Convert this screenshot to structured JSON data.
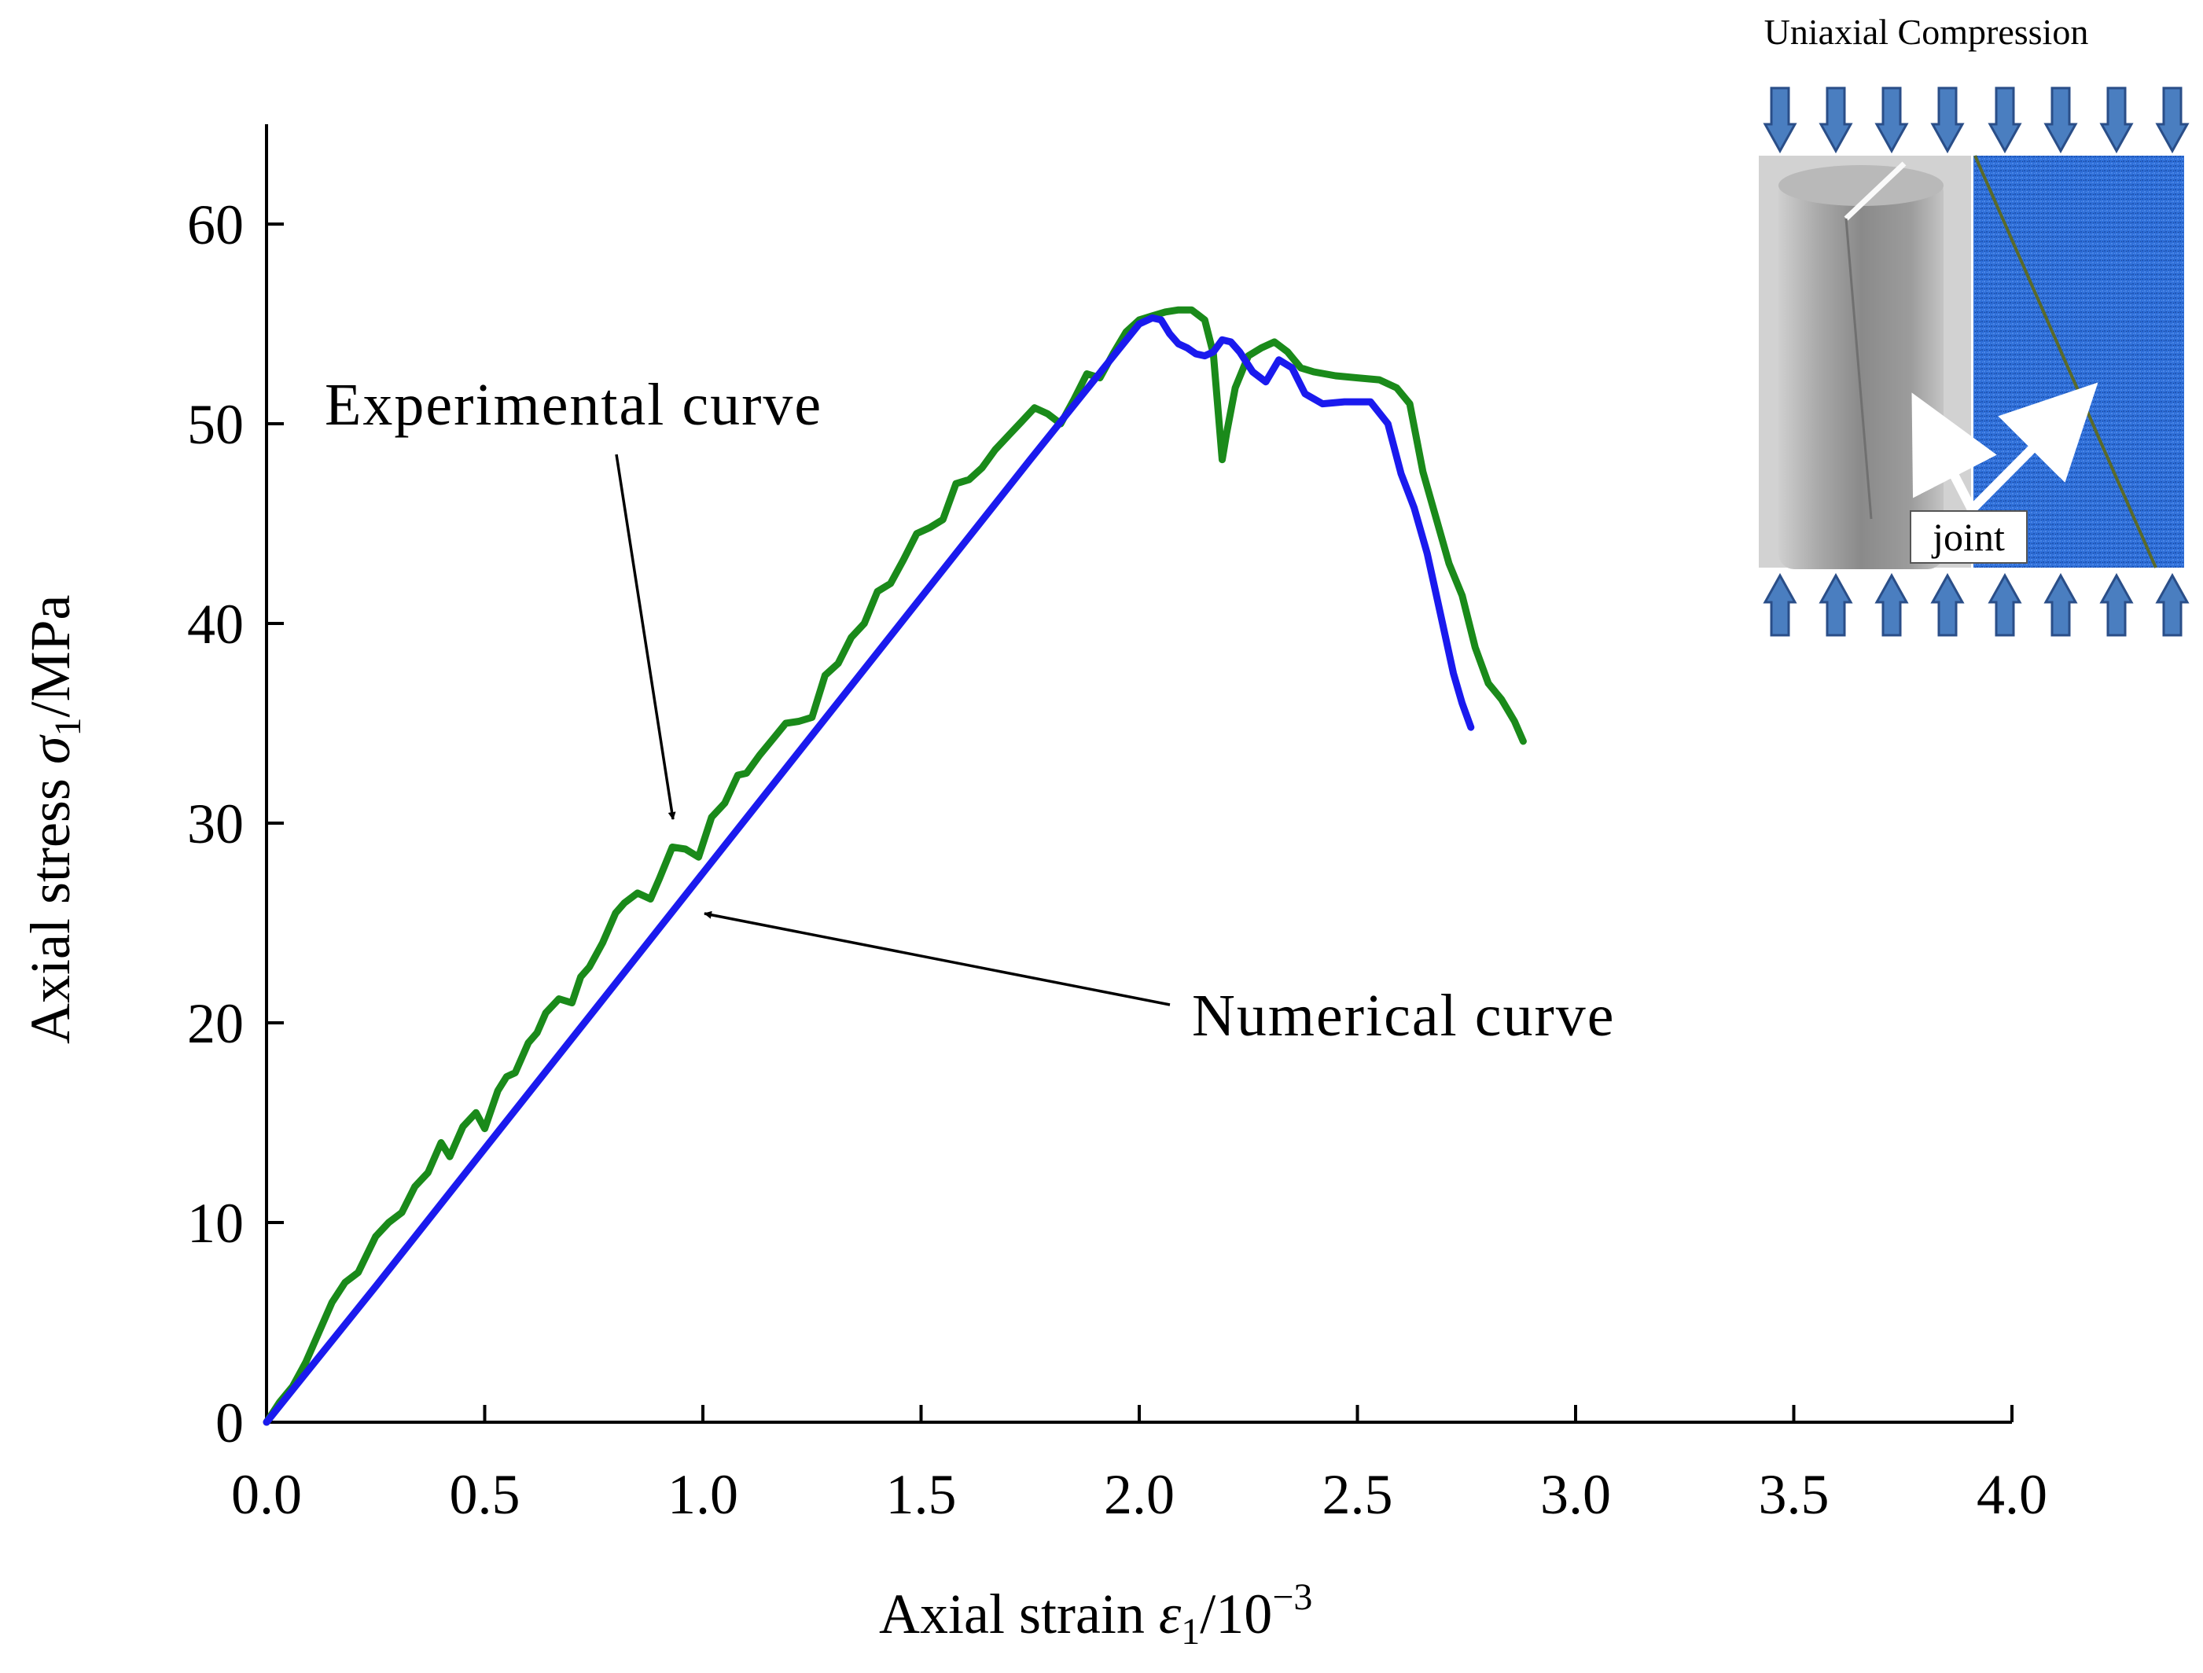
{
  "chart_data": {
    "type": "line",
    "xlabel": "Axial strain ε1/10−3",
    "ylabel": "Axial stress σ1/MPa",
    "xlim": [
      0,
      4.0
    ],
    "ylim": [
      0,
      65
    ],
    "x_ticks": [
      "0.0",
      "0.5",
      "1.0",
      "1.5",
      "2.0",
      "2.5",
      "3.0",
      "3.5",
      "4.0"
    ],
    "y_ticks": [
      "0",
      "10",
      "20",
      "30",
      "40",
      "50",
      "60"
    ],
    "grid": false,
    "series": [
      {
        "name": "Experimental curve",
        "color": "#1a8a1a",
        "x": [
          0.0,
          0.03,
          0.06,
          0.09,
          0.12,
          0.15,
          0.18,
          0.21,
          0.25,
          0.28,
          0.31,
          0.34,
          0.37,
          0.4,
          0.42,
          0.45,
          0.48,
          0.5,
          0.53,
          0.55,
          0.57,
          0.6,
          0.62,
          0.64,
          0.67,
          0.7,
          0.72,
          0.74,
          0.77,
          0.8,
          0.82,
          0.85,
          0.88,
          0.9,
          0.93,
          0.96,
          0.99,
          1.02,
          1.05,
          1.08,
          1.1,
          1.13,
          1.16,
          1.19,
          1.22,
          1.25,
          1.28,
          1.31,
          1.34,
          1.37,
          1.4,
          1.43,
          1.46,
          1.49,
          1.52,
          1.55,
          1.58,
          1.61,
          1.64,
          1.67,
          1.7,
          1.73,
          1.76,
          1.79,
          1.82,
          1.85,
          1.88,
          1.91,
          1.94,
          1.97,
          2.0,
          2.03,
          2.06,
          2.09,
          2.12,
          2.15,
          2.17,
          2.19,
          2.2,
          2.22,
          2.25,
          2.28,
          2.31,
          2.34,
          2.37,
          2.4,
          2.45,
          2.5,
          2.55,
          2.59,
          2.62,
          2.65,
          2.68,
          2.71,
          2.74,
          2.77,
          2.8,
          2.83,
          2.86,
          2.88
        ],
        "y": [
          0.0,
          1.0,
          1.8,
          3.0,
          4.5,
          6.0,
          7.0,
          7.5,
          9.3,
          10.0,
          10.5,
          11.8,
          12.5,
          14.0,
          13.3,
          14.8,
          15.5,
          14.7,
          16.6,
          17.3,
          17.5,
          19.0,
          19.5,
          20.5,
          21.2,
          21.0,
          22.3,
          22.8,
          24.0,
          25.5,
          26.0,
          26.5,
          26.2,
          27.2,
          28.8,
          28.7,
          28.3,
          30.3,
          31.0,
          32.4,
          32.5,
          33.4,
          34.2,
          35.0,
          35.1,
          35.3,
          37.4,
          38.0,
          39.3,
          40.0,
          41.6,
          42.0,
          43.2,
          44.5,
          44.8,
          45.2,
          47.0,
          47.2,
          47.8,
          48.7,
          49.4,
          50.1,
          50.8,
          50.5,
          50.0,
          51.2,
          52.5,
          52.3,
          53.5,
          54.6,
          55.2,
          55.4,
          55.6,
          55.7,
          55.7,
          55.2,
          53.5,
          48.2,
          49.5,
          51.8,
          53.4,
          53.8,
          54.1,
          53.6,
          52.8,
          52.6,
          52.4,
          52.3,
          52.2,
          51.8,
          51.0,
          47.6,
          45.3,
          43.0,
          41.4,
          38.8,
          37.0,
          36.2,
          35.1,
          34.1
        ]
      },
      {
        "name": "Numerical curve",
        "color": "#1a1aee",
        "x": [
          0.0,
          0.25,
          0.5,
          0.75,
          1.0,
          1.25,
          1.5,
          1.75,
          2.0,
          2.03,
          2.05,
          2.07,
          2.09,
          2.11,
          2.13,
          2.15,
          2.17,
          2.19,
          2.21,
          2.23,
          2.26,
          2.29,
          2.32,
          2.35,
          2.38,
          2.42,
          2.47,
          2.53,
          2.57,
          2.6,
          2.63,
          2.66,
          2.69,
          2.72,
          2.74,
          2.76
        ],
        "y": [
          0.0,
          6.8,
          13.7,
          20.6,
          27.5,
          34.4,
          41.3,
          48.2,
          55.0,
          55.3,
          55.2,
          54.5,
          54.0,
          53.8,
          53.5,
          53.4,
          53.6,
          54.2,
          54.1,
          53.6,
          52.6,
          52.1,
          53.2,
          52.8,
          51.5,
          51.0,
          51.1,
          51.1,
          50.0,
          47.5,
          45.8,
          43.5,
          40.5,
          37.5,
          36.0,
          34.8
        ]
      }
    ],
    "annotations": [
      "Experimental curve",
      "Numerical curve"
    ]
  },
  "inset": {
    "title": "Uniaxial Compression",
    "joint_label": "joint"
  }
}
